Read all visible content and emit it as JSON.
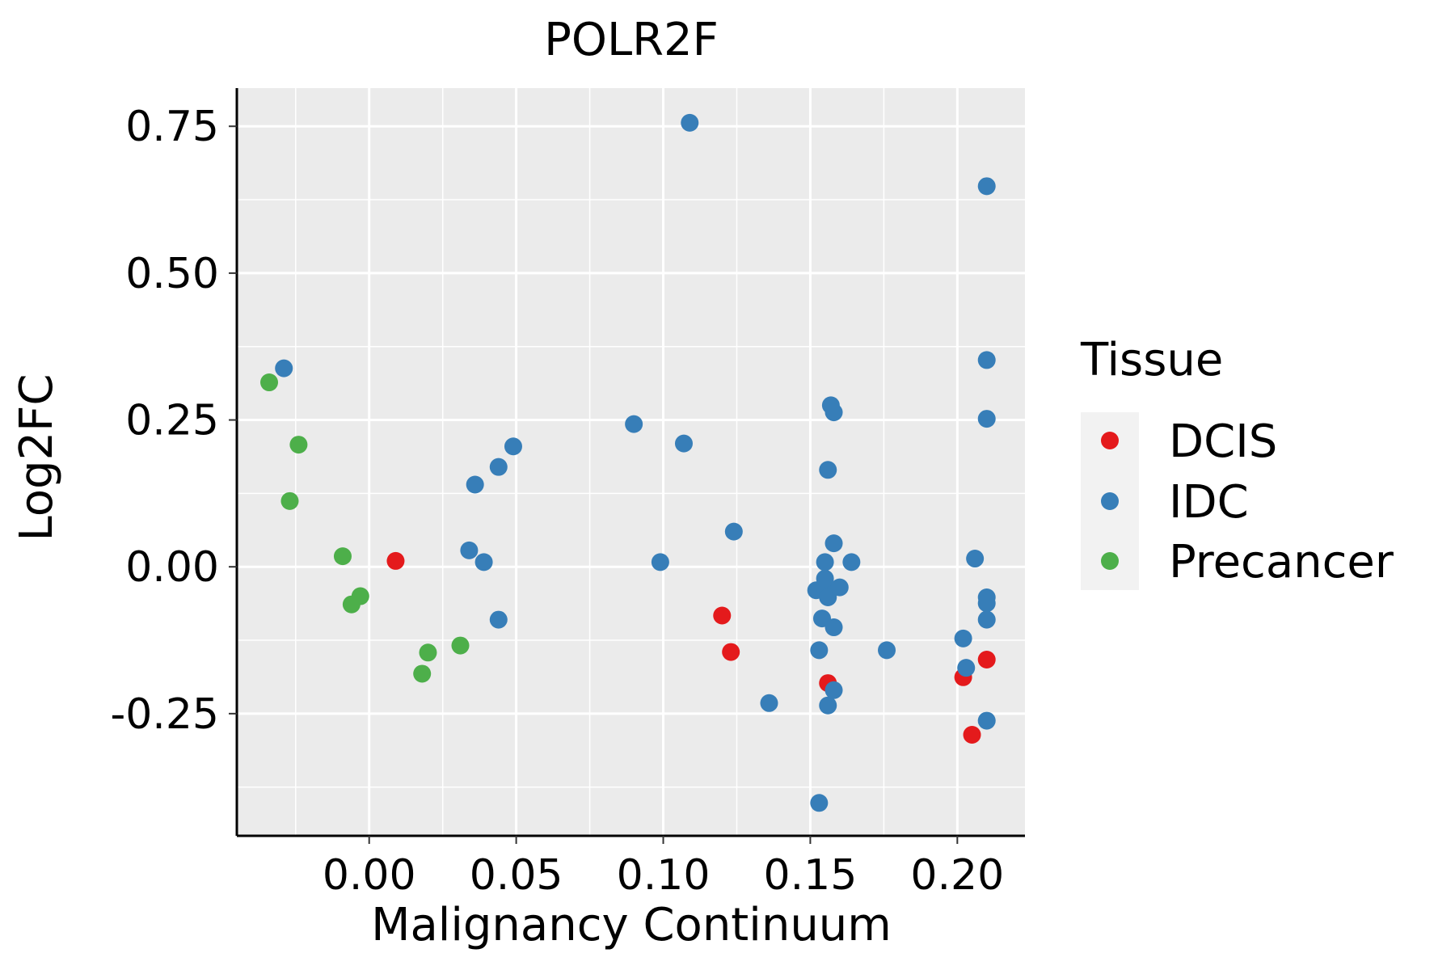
{
  "chart_data": {
    "type": "scatter",
    "title": "POLR2F",
    "xlabel": "Malignancy Continuum",
    "ylabel": "Log2FC",
    "xlim": [
      -0.045,
      0.223
    ],
    "ylim": [
      -0.458,
      0.815
    ],
    "x_ticks": [
      0.0,
      0.05,
      0.1,
      0.15,
      0.2
    ],
    "x_tick_labels": [
      "0.00",
      "0.05",
      "0.10",
      "0.15",
      "0.20"
    ],
    "y_ticks": [
      -0.25,
      0.0,
      0.25,
      0.5,
      0.75
    ],
    "y_tick_labels": [
      "-0.25",
      "0.00",
      "0.25",
      "0.50",
      "0.75"
    ],
    "grid": true,
    "legend": {
      "title": "Tissue",
      "position": "right",
      "entries": [
        {
          "label": "DCIS",
          "color": "#E41A1C"
        },
        {
          "label": "IDC",
          "color": "#377EB8"
        },
        {
          "label": "Precancer",
          "color": "#4DAF4A"
        }
      ]
    },
    "series": [
      {
        "name": "DCIS",
        "color": "#E41A1C",
        "points": [
          [
            0.009,
            0.01
          ],
          [
            0.12,
            -0.083
          ],
          [
            0.123,
            -0.145
          ],
          [
            0.156,
            -0.198
          ],
          [
            0.202,
            -0.188
          ],
          [
            0.205,
            -0.286
          ],
          [
            0.21,
            -0.158
          ]
        ]
      },
      {
        "name": "IDC",
        "color": "#377EB8",
        "points": [
          [
            -0.029,
            0.338
          ],
          [
            0.034,
            0.028
          ],
          [
            0.036,
            0.14
          ],
          [
            0.039,
            0.008
          ],
          [
            0.044,
            0.17
          ],
          [
            0.044,
            -0.09
          ],
          [
            0.049,
            0.205
          ],
          [
            0.09,
            0.243
          ],
          [
            0.099,
            0.008
          ],
          [
            0.107,
            0.21
          ],
          [
            0.109,
            0.756
          ],
          [
            0.124,
            0.06
          ],
          [
            0.136,
            -0.232
          ],
          [
            0.152,
            -0.04
          ],
          [
            0.153,
            -0.142
          ],
          [
            0.153,
            -0.402
          ],
          [
            0.154,
            -0.088
          ],
          [
            0.155,
            0.008
          ],
          [
            0.155,
            -0.035
          ],
          [
            0.155,
            -0.02
          ],
          [
            0.156,
            -0.052
          ],
          [
            0.156,
            0.165
          ],
          [
            0.156,
            -0.236
          ],
          [
            0.157,
            0.275
          ],
          [
            0.158,
            0.263
          ],
          [
            0.158,
            0.04
          ],
          [
            0.158,
            -0.103
          ],
          [
            0.158,
            -0.21
          ],
          [
            0.16,
            -0.035
          ],
          [
            0.164,
            0.008
          ],
          [
            0.176,
            -0.142
          ],
          [
            0.202,
            -0.122
          ],
          [
            0.203,
            -0.172
          ],
          [
            0.206,
            0.014
          ],
          [
            0.21,
            0.648
          ],
          [
            0.21,
            0.352
          ],
          [
            0.21,
            0.252
          ],
          [
            0.21,
            -0.052
          ],
          [
            0.21,
            -0.062
          ],
          [
            0.21,
            -0.09
          ],
          [
            0.21,
            -0.262
          ]
        ]
      },
      {
        "name": "Precancer",
        "color": "#4DAF4A",
        "points": [
          [
            -0.034,
            0.314
          ],
          [
            -0.027,
            0.112
          ],
          [
            -0.024,
            0.208
          ],
          [
            -0.009,
            0.018
          ],
          [
            -0.006,
            -0.064
          ],
          [
            -0.003,
            -0.05
          ],
          [
            0.018,
            -0.182
          ],
          [
            0.02,
            -0.146
          ],
          [
            0.031,
            -0.134
          ]
        ]
      }
    ]
  }
}
